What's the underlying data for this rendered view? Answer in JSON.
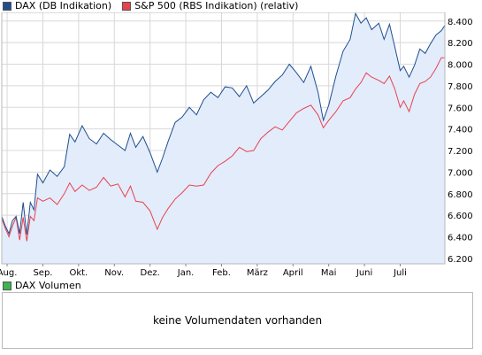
{
  "legend": {
    "dax_label": "DAX (DB Indikation)",
    "sp_label": "S&P 500 (RBS Indikation) (relativ)",
    "volume_label": "DAX Volumen"
  },
  "colors": {
    "dax": "#1f4e8f",
    "dax_fill": "#e3ecfb",
    "sp": "#e8424e",
    "volume": "#3fb34f",
    "grid": "#d8d8d8"
  },
  "volume_panel": {
    "message": "keine Volumendaten vorhanden"
  },
  "chart_data": {
    "type": "area",
    "x_tick_labels": [
      "Aug.",
      "Sep.",
      "Okt.",
      "Nov.",
      "Dez.",
      "Jan.",
      "Feb.",
      "März",
      "April",
      "Mai",
      "Juni",
      "Juli"
    ],
    "y_tick_labels": [
      "6.200",
      "6.400",
      "6.600",
      "6.800",
      "7.000",
      "7.200",
      "7.400",
      "7.600",
      "7.800",
      "8.000",
      "8.200",
      "8.400"
    ],
    "ylim": [
      6150,
      8480
    ],
    "x_range_months": [
      6.85,
      19.25
    ],
    "grid": true,
    "series": [
      {
        "name": "DAX (DB Indikation)",
        "points": [
          [
            6.85,
            6590
          ],
          [
            6.95,
            6500
          ],
          [
            7.05,
            6430
          ],
          [
            7.15,
            6550
          ],
          [
            7.25,
            6590
          ],
          [
            7.35,
            6430
          ],
          [
            7.45,
            6720
          ],
          [
            7.55,
            6420
          ],
          [
            7.65,
            6720
          ],
          [
            7.75,
            6650
          ],
          [
            7.85,
            6980
          ],
          [
            8.0,
            6900
          ],
          [
            8.2,
            7020
          ],
          [
            8.4,
            6960
          ],
          [
            8.6,
            7050
          ],
          [
            8.75,
            7350
          ],
          [
            8.9,
            7280
          ],
          [
            9.1,
            7430
          ],
          [
            9.3,
            7310
          ],
          [
            9.5,
            7260
          ],
          [
            9.7,
            7360
          ],
          [
            9.9,
            7300
          ],
          [
            10.1,
            7250
          ],
          [
            10.3,
            7200
          ],
          [
            10.45,
            7360
          ],
          [
            10.6,
            7230
          ],
          [
            10.8,
            7330
          ],
          [
            11.0,
            7180
          ],
          [
            11.2,
            7000
          ],
          [
            11.35,
            7130
          ],
          [
            11.5,
            7280
          ],
          [
            11.7,
            7460
          ],
          [
            11.9,
            7510
          ],
          [
            12.1,
            7600
          ],
          [
            12.3,
            7530
          ],
          [
            12.5,
            7670
          ],
          [
            12.7,
            7740
          ],
          [
            12.9,
            7690
          ],
          [
            13.1,
            7790
          ],
          [
            13.3,
            7780
          ],
          [
            13.5,
            7700
          ],
          [
            13.7,
            7800
          ],
          [
            13.9,
            7640
          ],
          [
            14.1,
            7700
          ],
          [
            14.3,
            7760
          ],
          [
            14.5,
            7840
          ],
          [
            14.7,
            7900
          ],
          [
            14.9,
            8000
          ],
          [
            15.1,
            7920
          ],
          [
            15.3,
            7830
          ],
          [
            15.5,
            7980
          ],
          [
            15.7,
            7740
          ],
          [
            15.85,
            7480
          ],
          [
            16.0,
            7620
          ],
          [
            16.2,
            7890
          ],
          [
            16.4,
            8120
          ],
          [
            16.6,
            8230
          ],
          [
            16.75,
            8470
          ],
          [
            16.9,
            8380
          ],
          [
            17.05,
            8430
          ],
          [
            17.2,
            8320
          ],
          [
            17.4,
            8380
          ],
          [
            17.55,
            8230
          ],
          [
            17.7,
            8370
          ],
          [
            17.85,
            8160
          ],
          [
            18.0,
            7940
          ],
          [
            18.1,
            7980
          ],
          [
            18.25,
            7880
          ],
          [
            18.4,
            7990
          ],
          [
            18.55,
            8140
          ],
          [
            18.7,
            8100
          ],
          [
            18.85,
            8190
          ],
          [
            19.0,
            8270
          ],
          [
            19.15,
            8310
          ],
          [
            19.25,
            8360
          ]
        ]
      },
      {
        "name": "S&P 500 (RBS Indikation) (relativ)",
        "points": [
          [
            6.85,
            6570
          ],
          [
            6.95,
            6480
          ],
          [
            7.05,
            6400
          ],
          [
            7.15,
            6500
          ],
          [
            7.25,
            6580
          ],
          [
            7.35,
            6370
          ],
          [
            7.45,
            6580
          ],
          [
            7.55,
            6360
          ],
          [
            7.65,
            6590
          ],
          [
            7.75,
            6550
          ],
          [
            7.85,
            6760
          ],
          [
            8.0,
            6730
          ],
          [
            8.2,
            6760
          ],
          [
            8.4,
            6700
          ],
          [
            8.6,
            6800
          ],
          [
            8.75,
            6900
          ],
          [
            8.9,
            6820
          ],
          [
            9.1,
            6880
          ],
          [
            9.3,
            6830
          ],
          [
            9.5,
            6860
          ],
          [
            9.7,
            6950
          ],
          [
            9.9,
            6870
          ],
          [
            10.1,
            6890
          ],
          [
            10.3,
            6770
          ],
          [
            10.45,
            6870
          ],
          [
            10.6,
            6730
          ],
          [
            10.8,
            6720
          ],
          [
            11.0,
            6640
          ],
          [
            11.2,
            6470
          ],
          [
            11.35,
            6580
          ],
          [
            11.5,
            6660
          ],
          [
            11.7,
            6750
          ],
          [
            11.9,
            6810
          ],
          [
            12.1,
            6880
          ],
          [
            12.3,
            6870
          ],
          [
            12.5,
            6880
          ],
          [
            12.7,
            6990
          ],
          [
            12.9,
            7060
          ],
          [
            13.1,
            7100
          ],
          [
            13.3,
            7150
          ],
          [
            13.5,
            7230
          ],
          [
            13.7,
            7190
          ],
          [
            13.9,
            7200
          ],
          [
            14.1,
            7310
          ],
          [
            14.3,
            7370
          ],
          [
            14.5,
            7420
          ],
          [
            14.7,
            7390
          ],
          [
            14.9,
            7470
          ],
          [
            15.1,
            7550
          ],
          [
            15.3,
            7590
          ],
          [
            15.5,
            7620
          ],
          [
            15.7,
            7530
          ],
          [
            15.85,
            7410
          ],
          [
            16.0,
            7480
          ],
          [
            16.2,
            7560
          ],
          [
            16.4,
            7660
          ],
          [
            16.6,
            7690
          ],
          [
            16.75,
            7770
          ],
          [
            16.9,
            7830
          ],
          [
            17.05,
            7920
          ],
          [
            17.2,
            7880
          ],
          [
            17.4,
            7850
          ],
          [
            17.55,
            7820
          ],
          [
            17.7,
            7890
          ],
          [
            17.85,
            7770
          ],
          [
            18.0,
            7600
          ],
          [
            18.1,
            7660
          ],
          [
            18.25,
            7560
          ],
          [
            18.4,
            7720
          ],
          [
            18.55,
            7820
          ],
          [
            18.7,
            7840
          ],
          [
            18.85,
            7880
          ],
          [
            19.0,
            7960
          ],
          [
            19.15,
            8060
          ],
          [
            19.25,
            8060
          ]
        ]
      }
    ]
  }
}
